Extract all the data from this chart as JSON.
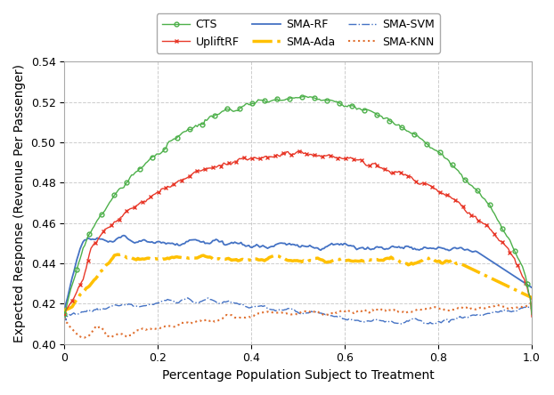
{
  "title": "",
  "xlabel": "Percentage Population Subject to Treatment",
  "ylabel": "Expected Response (Revenue Per Passenger)",
  "xlim": [
    0,
    1.0
  ],
  "ylim": [
    0.4,
    0.54
  ],
  "yticks": [
    0.4,
    0.42,
    0.44,
    0.46,
    0.48,
    0.5,
    0.52,
    0.54
  ],
  "xticks": [
    0,
    0.2,
    0.4,
    0.6,
    0.8,
    1.0
  ],
  "series": {
    "CTS": {
      "color": "#4db04a",
      "linestyle": "-",
      "marker": "o",
      "markersize": 3.5,
      "linewidth": 1.0,
      "zorder": 5,
      "markerfacecolor": "none",
      "markevery": 8
    },
    "UpliftRF": {
      "color": "#e8392a",
      "linestyle": "-",
      "marker": "x",
      "markersize": 3.5,
      "linewidth": 1.0,
      "zorder": 4,
      "markerfacecolor": "auto",
      "markevery": 5
    },
    "SMA-RF": {
      "color": "#4472c4",
      "linestyle": "-",
      "marker": "",
      "markersize": 0,
      "linewidth": 1.3,
      "zorder": 3,
      "markerfacecolor": "auto",
      "markevery": 1
    },
    "SMA-Ada": {
      "color": "#ffc000",
      "linestyle": "-.",
      "marker": "",
      "markersize": 0,
      "linewidth": 2.5,
      "zorder": 3,
      "markerfacecolor": "auto",
      "markevery": 1
    },
    "SMA-SVM": {
      "color": "#4472c4",
      "linestyle": "-.",
      "marker": "",
      "markersize": 0,
      "linewidth": 1.0,
      "zorder": 2,
      "markerfacecolor": "auto",
      "markevery": 1
    },
    "SMA-KNN": {
      "color": "#e07030",
      "linestyle": ":",
      "marker": "",
      "markersize": 0,
      "linewidth": 1.5,
      "zorder": 2,
      "markerfacecolor": "auto",
      "markevery": 1
    }
  },
  "legend_ncol": 3,
  "grid_color": "#c0c0c0",
  "grid_linestyle": "--",
  "grid_alpha": 0.8,
  "background_color": "#ffffff"
}
